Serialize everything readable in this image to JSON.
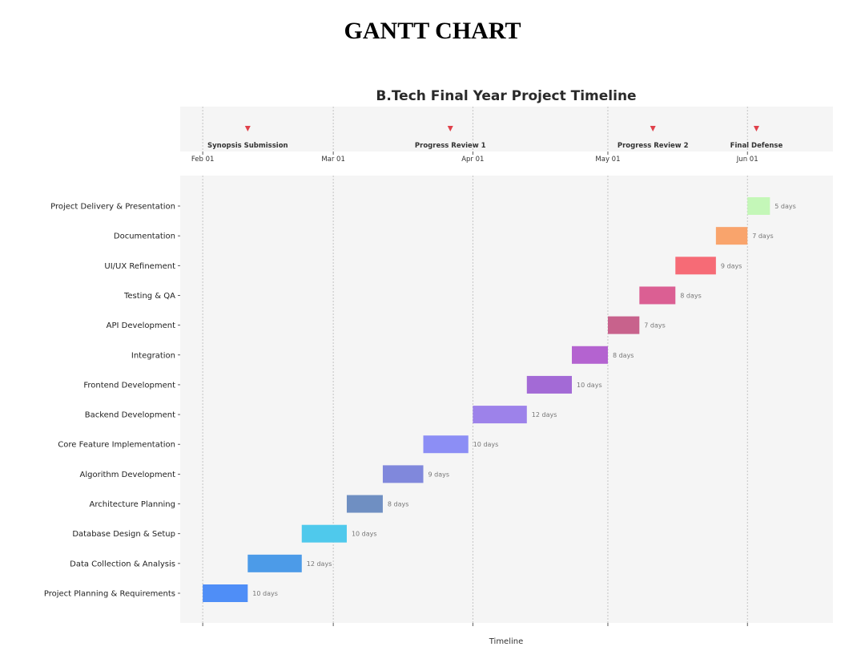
{
  "document": {
    "title": "GANTT CHART"
  },
  "chart_data": {
    "type": "gantt",
    "title": "B.Tech Final Year Project Timeline",
    "xlabel": "Timeline",
    "date_ticks": [
      "Feb 01",
      "Mar 01",
      "Apr 01",
      "May 01",
      "Jun 01"
    ],
    "x_range": [
      "2024-01-27",
      "2024-06-20"
    ],
    "grid": "vertical",
    "milestones": [
      {
        "label": "Synopsis Submission",
        "date": "2024-02-11",
        "color": "#e0414b"
      },
      {
        "label": "Progress Review 1",
        "date": "2024-03-27",
        "color": "#e0414b"
      },
      {
        "label": "Progress Review 2",
        "date": "2024-05-11",
        "color": "#e0414b"
      },
      {
        "label": "Final Defense",
        "date": "2024-06-03",
        "color": "#e0414b"
      }
    ],
    "tasks": [
      {
        "name": "Project Planning & Requirements",
        "start": "2024-02-01",
        "duration": 10,
        "duration_label": "10 days",
        "color": "#4f8ef7"
      },
      {
        "name": "Data Collection & Analysis",
        "start": "2024-02-11",
        "duration": 12,
        "duration_label": "12 days",
        "color": "#4c9be8"
      },
      {
        "name": "Database Design & Setup",
        "start": "2024-02-23",
        "duration": 10,
        "duration_label": "10 days",
        "color": "#4fc9ec"
      },
      {
        "name": "Architecture Planning",
        "start": "2024-03-04",
        "duration": 8,
        "duration_label": "8 days",
        "color": "#6f8fc2"
      },
      {
        "name": "Algorithm Development",
        "start": "2024-03-12",
        "duration": 9,
        "duration_label": "9 days",
        "color": "#8088dc"
      },
      {
        "name": "Core Feature Implementation",
        "start": "2024-03-21",
        "duration": 10,
        "duration_label": "10 days",
        "color": "#8c8ef5"
      },
      {
        "name": "Backend Development",
        "start": "2024-04-01",
        "duration": 12,
        "duration_label": "12 days",
        "color": "#9d82ea"
      },
      {
        "name": "Frontend Development",
        "start": "2024-04-13",
        "duration": 10,
        "duration_label": "10 days",
        "color": "#a36ad6"
      },
      {
        "name": "Integration",
        "start": "2024-04-23",
        "duration": 8,
        "duration_label": "8 days",
        "color": "#b463d0"
      },
      {
        "name": "API Development",
        "start": "2024-05-01",
        "duration": 7,
        "duration_label": "7 days",
        "color": "#c8628c"
      },
      {
        "name": "Testing & QA",
        "start": "2024-05-08",
        "duration": 8,
        "duration_label": "8 days",
        "color": "#db5f93"
      },
      {
        "name": "UI/UX Refinement",
        "start": "2024-05-16",
        "duration": 9,
        "duration_label": "9 days",
        "color": "#f66b76"
      },
      {
        "name": "Documentation",
        "start": "2024-05-25",
        "duration": 7,
        "duration_label": "7 days",
        "color": "#f9a46c"
      },
      {
        "name": "Project Delivery & Presentation",
        "start": "2024-06-01",
        "duration": 5,
        "duration_label": "5 days",
        "color": "#c4f7b8"
      }
    ]
  }
}
